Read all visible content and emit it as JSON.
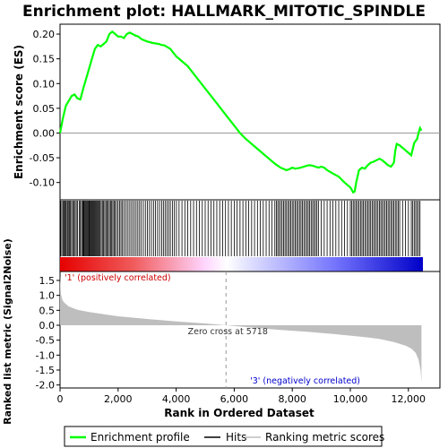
{
  "chart_data": {
    "type": "line",
    "title": "Enrichment plot: HALLMARK_MITOTIC_SPINDLE",
    "xlabel": "Rank in Ordered Dataset",
    "xlim": [
      0,
      12500
    ],
    "x_ticks": [
      "0",
      "2,000",
      "4,000",
      "6,000",
      "8,000",
      "10,000",
      "12,000"
    ],
    "es_panel": {
      "ylabel": "Enrichment score (ES)",
      "ylim": [
        -0.135,
        0.22
      ],
      "y_ticks": [
        "0.20",
        "0.15",
        "0.10",
        "0.05",
        "0.00",
        "-0.05",
        "-0.10"
      ],
      "series": [
        {
          "name": "Enrichment profile",
          "color": "#00ff00",
          "x": [
            0,
            100,
            200,
            300,
            400,
            500,
            600,
            700,
            800,
            900,
            1000,
            1100,
            1200,
            1300,
            1400,
            1500,
            1600,
            1700,
            1800,
            1900,
            2000,
            2100,
            2200,
            2300,
            2400,
            2500,
            2600,
            2700,
            2800,
            3000,
            3200,
            3400,
            3500,
            3600,
            3800,
            4000,
            4200,
            4400,
            4600,
            4800,
            5000,
            5200,
            5400,
            5600,
            5800,
            6000,
            6200,
            6400,
            6600,
            6800,
            7000,
            7200,
            7400,
            7600,
            7800,
            7900,
            8000,
            8100,
            8200,
            8300,
            8400,
            8500,
            8600,
            8700,
            8800,
            8900,
            9000,
            9100,
            9200,
            9400,
            9600,
            9800,
            10000,
            10100,
            10150,
            10200,
            10300,
            10400,
            10500,
            10600,
            10700,
            10800,
            10900,
            11000,
            11100,
            11200,
            11300,
            11400,
            11500,
            11550,
            11600,
            11700,
            11800,
            11900,
            12000,
            12100,
            12200,
            12300,
            12350,
            12400,
            12450
          ],
          "y": [
            0.0,
            0.03,
            0.055,
            0.065,
            0.075,
            0.078,
            0.07,
            0.068,
            0.09,
            0.11,
            0.13,
            0.15,
            0.17,
            0.178,
            0.175,
            0.18,
            0.185,
            0.2,
            0.205,
            0.2,
            0.195,
            0.195,
            0.192,
            0.2,
            0.203,
            0.2,
            0.197,
            0.195,
            0.19,
            0.185,
            0.182,
            0.18,
            0.178,
            0.177,
            0.17,
            0.155,
            0.145,
            0.135,
            0.12,
            0.105,
            0.09,
            0.075,
            0.06,
            0.045,
            0.03,
            0.015,
            0.0,
            -0.012,
            -0.022,
            -0.032,
            -0.042,
            -0.052,
            -0.062,
            -0.07,
            -0.075,
            -0.073,
            -0.07,
            -0.072,
            -0.071,
            -0.07,
            -0.068,
            -0.066,
            -0.065,
            -0.066,
            -0.068,
            -0.07,
            -0.068,
            -0.07,
            -0.075,
            -0.082,
            -0.088,
            -0.1,
            -0.11,
            -0.12,
            -0.118,
            -0.1,
            -0.075,
            -0.07,
            -0.072,
            -0.065,
            -0.06,
            -0.058,
            -0.055,
            -0.052,
            -0.055,
            -0.06,
            -0.065,
            -0.068,
            -0.06,
            -0.035,
            -0.022,
            -0.025,
            -0.03,
            -0.035,
            -0.04,
            -0.045,
            -0.02,
            -0.012,
            0.0,
            0.01,
            0.005
          ]
        }
      ]
    },
    "hits_panel": {
      "legend_name": "Hits",
      "hit_ranks": [
        20,
        60,
        100,
        130,
        160,
        190,
        220,
        260,
        300,
        330,
        360,
        400,
        440,
        480,
        520,
        560,
        600,
        660,
        700,
        740,
        780,
        800,
        820,
        850,
        880,
        910,
        940,
        970,
        1000,
        1020,
        1050,
        1080,
        1110,
        1140,
        1170,
        1200,
        1230,
        1260,
        1290,
        1320,
        1350,
        1380,
        1420,
        1460,
        1500,
        1540,
        1580,
        1620,
        1660,
        1700,
        1740,
        1780,
        1820,
        1860,
        1900,
        1950,
        2000,
        2050,
        2100,
        2150,
        2200,
        2260,
        2320,
        2380,
        2440,
        2500,
        2560,
        2620,
        2680,
        2740,
        2800,
        2870,
        2940,
        3010,
        3080,
        3150,
        3220,
        3290,
        3360,
        3430,
        3500,
        3560,
        3620,
        3680,
        3740,
        3800,
        3870,
        3940,
        4010,
        4100,
        4200,
        4300,
        4400,
        4500,
        4600,
        4700,
        4800,
        4900,
        5000,
        5100,
        5200,
        5300,
        5400,
        5500,
        5600,
        5700,
        5800,
        5900,
        6000,
        6100,
        6200,
        6300,
        6400,
        6500,
        6600,
        6700,
        6800,
        6900,
        7000,
        7100,
        7200,
        7300,
        7400,
        7450,
        7500,
        7550,
        7600,
        7650,
        7700,
        7750,
        7800,
        7850,
        7900,
        7950,
        8000,
        8050,
        8100,
        8150,
        8200,
        8250,
        8300,
        8350,
        8400,
        8450,
        8500,
        8550,
        8600,
        8650,
        8700,
        8750,
        8800,
        8850,
        8900,
        9000,
        9100,
        9200,
        9300,
        9400,
        9500,
        9600,
        9700,
        9800,
        9900,
        10000,
        10050,
        10100,
        10150,
        10200,
        10250,
        10300,
        10350,
        10400,
        10450,
        10500,
        10550,
        10600,
        10650,
        10700,
        10750,
        10800,
        10850,
        10900,
        10950,
        11000,
        11050,
        11100,
        11150,
        11200,
        11250,
        11300,
        11350,
        11400,
        11450,
        11500,
        11550,
        11600,
        11650,
        11700,
        11800,
        11900,
        12000,
        12100,
        12150,
        12200,
        12250,
        12300,
        12350,
        12400
      ]
    },
    "rank_panel": {
      "ylabel": "Ranked list metric (Signal2Noise)",
      "legend_name": "Ranking metric scores",
      "ylim": [
        -2.1,
        1.8
      ],
      "y_ticks": [
        "1.5",
        "1.0",
        "0.5",
        "0.0",
        "-0.5",
        "-1.0",
        "-1.5",
        "-2.0"
      ],
      "x": [
        0,
        30,
        80,
        150,
        300,
        600,
        1000,
        2000,
        3000,
        4000,
        5000,
        5718,
        6500,
        7500,
        8500,
        9500,
        10500,
        11000,
        11500,
        11900,
        12100,
        12250,
        12350,
        12420,
        12450
      ],
      "y": [
        1.65,
        1.05,
        0.85,
        0.75,
        0.63,
        0.52,
        0.44,
        0.3,
        0.21,
        0.13,
        0.06,
        0.0,
        -0.07,
        -0.15,
        -0.22,
        -0.3,
        -0.4,
        -0.46,
        -0.56,
        -0.68,
        -0.78,
        -0.92,
        -1.15,
        -1.5,
        -1.9
      ]
    },
    "annotations": {
      "positive": "'1' (positively correlated)",
      "zero_cross": "Zero cross at 5718",
      "negative": "'3' (negatively correlated)"
    },
    "zero_cross_rank": 5718,
    "colors": {
      "profile": "#00ff00",
      "positive_text": "#cc0000",
      "negative_text": "#0000cc",
      "metric_fill": "#bebebe",
      "bar_positive": "#ff0000",
      "bar_negative": "#0000ff"
    }
  },
  "legend": {
    "profile": "Enrichment profile",
    "hits": "Hits",
    "ranking": "Ranking metric scores"
  }
}
